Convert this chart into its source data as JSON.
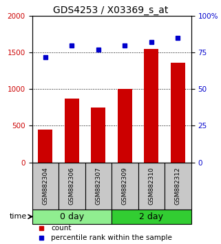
{
  "title": "GDS4253 / X03369_s_at",
  "categories": [
    "GSM882304",
    "GSM882306",
    "GSM882307",
    "GSM882309",
    "GSM882310",
    "GSM882312"
  ],
  "counts": [
    450,
    875,
    750,
    1005,
    1550,
    1360
  ],
  "percentiles": [
    72,
    80,
    77,
    80,
    82,
    85
  ],
  "groups": [
    {
      "label": "0 day",
      "indices": [
        0,
        1,
        2
      ],
      "color": "#90EE90"
    },
    {
      "label": "2 day",
      "indices": [
        3,
        4,
        5
      ],
      "color": "#32CD32"
    }
  ],
  "bar_color": "#CC0000",
  "dot_color": "#0000CC",
  "ylim_left": [
    0,
    2000
  ],
  "ylim_right": [
    0,
    100
  ],
  "yticks_left": [
    0,
    500,
    1000,
    1500,
    2000
  ],
  "yticks_right": [
    0,
    25,
    50,
    75,
    100
  ],
  "ytick_labels_right": [
    "0",
    "25",
    "50",
    "75",
    "100%"
  ],
  "legend_count_label": "count",
  "legend_pct_label": "percentile rank within the sample",
  "time_label": "time",
  "bg_color": "#ffffff",
  "plot_bg": "#ffffff",
  "label_area_bg": "#c8c8c8",
  "light_green": "#b0f0b0",
  "dark_green": "#22cc22",
  "title_fontsize": 10,
  "tick_fontsize": 7.5,
  "sample_fontsize": 6.5,
  "group_label_fontsize": 9,
  "legend_fontsize": 7.5
}
